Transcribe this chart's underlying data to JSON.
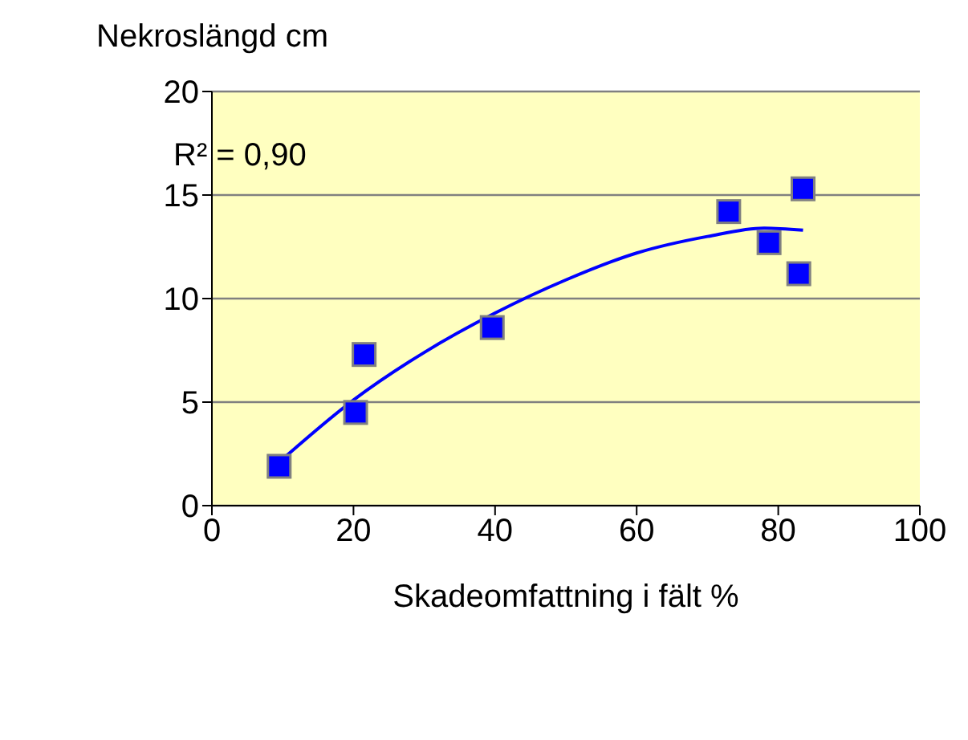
{
  "chart_data": {
    "type": "scatter",
    "xlabel": "Skadeomfattning i fält %",
    "ylabel": "Nekroslängd cm",
    "annotations": [
      "R² = 0,90"
    ],
    "xlim": [
      0,
      100
    ],
    "xticks": [
      0,
      20,
      40,
      60,
      80,
      100
    ],
    "ylim": [
      0,
      20
    ],
    "yticks": [
      0,
      5,
      10,
      15,
      20
    ],
    "grid": "y",
    "series": [
      {
        "color": "#0000ff",
        "marker": "square",
        "x": [
          9.5,
          20.3,
          21.5,
          39.6,
          73,
          83.5,
          82.9,
          78.7
        ],
        "values": [
          1.9,
          4.5,
          7.3,
          8.6,
          14.2,
          15.3,
          11.2,
          12.7
        ]
      },
      {
        "type": "line",
        "color": "#0000ff",
        "marker": "none",
        "x": [
          9.5,
          20,
          30,
          40,
          50,
          60,
          70,
          78,
          83.5
        ],
        "values": [
          2.1,
          5.1,
          7.4,
          9.3,
          10.9,
          12.2,
          13.0,
          13.4,
          13.3
        ]
      }
    ]
  }
}
